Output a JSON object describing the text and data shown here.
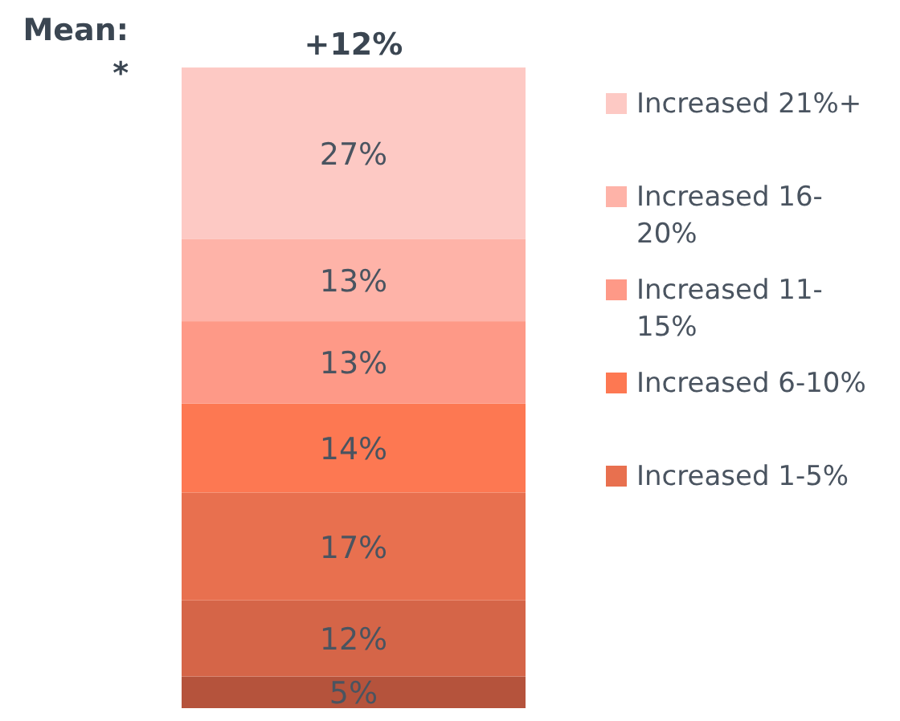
{
  "chart_data": {
    "type": "bar",
    "stacked": true,
    "categories": [
      null
    ],
    "annotations": [
      "Mean:",
      "*",
      "+12%"
    ],
    "legend": "right",
    "series": [
      {
        "color": "#b5533c",
        "values": [
          5
        ],
        "value_labels": [
          "5%"
        ]
      },
      {
        "color": "#d56548",
        "values": [
          12
        ],
        "value_labels": [
          "12%"
        ]
      },
      {
        "name": "Increased 1-5%",
        "color": "#e8704f",
        "values": [
          17
        ],
        "value_labels": [
          "17%"
        ]
      },
      {
        "name": "Increased 6-10%",
        "color": "#fd7852",
        "values": [
          14
        ],
        "value_labels": [
          "14%"
        ]
      },
      {
        "name": "Increased 11-15%",
        "color": "#fe9987",
        "values": [
          13
        ],
        "value_labels": [
          "13%"
        ]
      },
      {
        "name": "Increased 16-20%",
        "color": "#feb3a8",
        "values": [
          13
        ],
        "value_labels": [
          "13%"
        ]
      },
      {
        "name": "Increased 21%+",
        "color": "#fdc9c4",
        "values": [
          27
        ],
        "value_labels": [
          "27%"
        ]
      }
    ]
  }
}
